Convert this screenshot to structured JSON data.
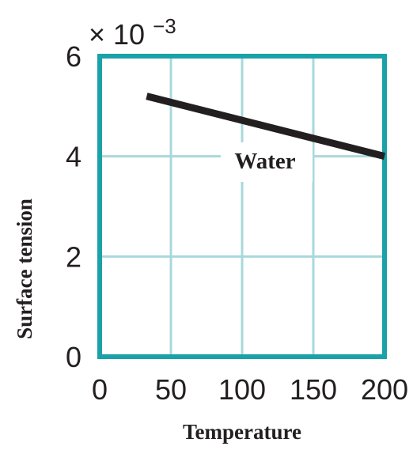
{
  "chart_data": {
    "type": "line",
    "xlabel": "Temperature",
    "ylabel": "Surface tension",
    "scale_label": "× 10",
    "scale_exponent": "−3",
    "xlim": [
      0,
      200
    ],
    "ylim": [
      0,
      6
    ],
    "x_ticks": [
      {
        "value": 0,
        "label": "0"
      },
      {
        "value": 50,
        "label": "50"
      },
      {
        "value": 100,
        "label": "100"
      },
      {
        "value": 150,
        "label": "150"
      },
      {
        "value": 200,
        "label": "200"
      }
    ],
    "y_ticks": [
      {
        "value": 0,
        "label": "0"
      },
      {
        "value": 2,
        "label": "2"
      },
      {
        "value": 4,
        "label": "4"
      },
      {
        "value": 6,
        "label": "6"
      }
    ],
    "grid": true,
    "series": [
      {
        "name": "Water",
        "x": [
          33,
          200
        ],
        "y": [
          5.2,
          4.0
        ]
      }
    ],
    "colors": {
      "frame": "#1ba1a8",
      "grid": "#a9d8dc",
      "line": "#231f20"
    }
  }
}
